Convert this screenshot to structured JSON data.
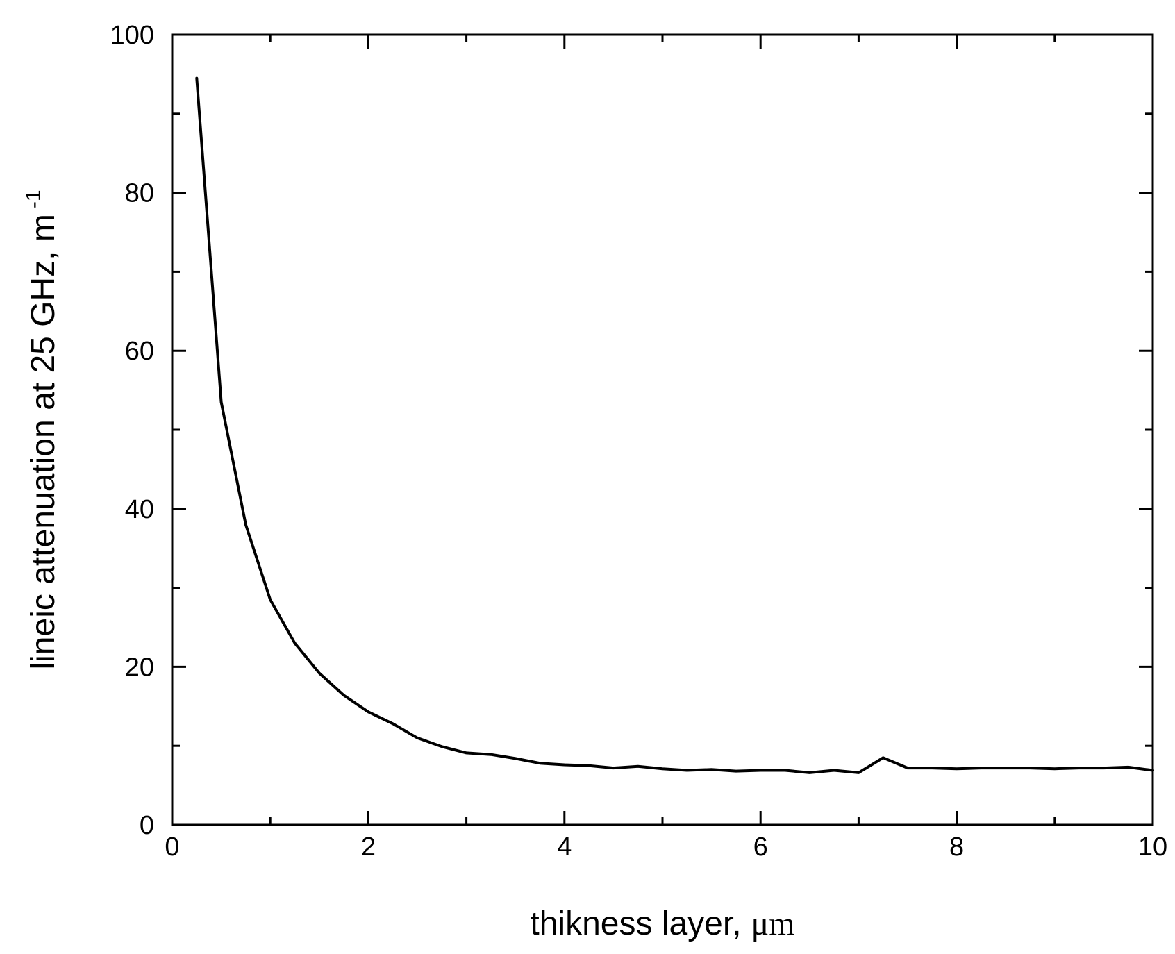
{
  "chart_data": {
    "type": "line",
    "title": "",
    "xlabel": "thikness layer,",
    "xlabel_unit": "μm",
    "ylabel": "lineic attenuation at 25 GHz, m",
    "ylabel_exponent": "-1",
    "xlim": [
      0,
      10
    ],
    "ylim": [
      0,
      100
    ],
    "x_ticks": [
      "0",
      "2",
      "4",
      "6",
      "8",
      "10"
    ],
    "y_ticks": [
      "0",
      "20",
      "40",
      "60",
      "80",
      "100"
    ],
    "grid": false,
    "line_color": "#000000",
    "series": [
      {
        "x": [
          0.25,
          0.5,
          0.75,
          1.0,
          1.25,
          1.5,
          1.75,
          2.0,
          2.25,
          2.5,
          2.75,
          3.0,
          3.25,
          3.5,
          3.75,
          4.0,
          4.25,
          4.5,
          4.75,
          5.0,
          5.25,
          5.5,
          5.75,
          6.0,
          6.25,
          6.5,
          6.75,
          7.0,
          7.25,
          7.5,
          7.75,
          8.0,
          8.25,
          8.5,
          8.75,
          9.0,
          9.25,
          9.5,
          9.75,
          10.0
        ],
        "y": [
          94.5,
          53.5,
          38.0,
          28.5,
          23.0,
          19.2,
          16.4,
          14.3,
          12.8,
          11.0,
          9.9,
          9.1,
          8.9,
          8.4,
          7.8,
          7.6,
          7.5,
          7.2,
          7.4,
          7.1,
          6.9,
          7.0,
          6.8,
          6.9,
          6.9,
          6.6,
          6.9,
          6.6,
          8.5,
          7.2,
          7.2,
          7.1,
          7.2,
          7.2,
          7.2,
          7.1,
          7.2,
          7.2,
          7.3,
          6.9
        ]
      }
    ]
  }
}
